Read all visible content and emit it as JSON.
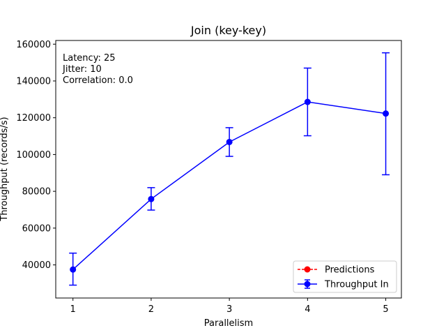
{
  "chart_data": {
    "type": "line",
    "title": "Join (key-key)",
    "xlabel": "Parallelism",
    "ylabel": "Throughput (records/s)",
    "xlim": [
      0.78,
      5.2
    ],
    "ylim": [
      22000,
      162000
    ],
    "x_ticks": [
      1,
      2,
      3,
      4,
      5
    ],
    "x_tick_labels": [
      "1",
      "2",
      "3",
      "4",
      "5"
    ],
    "y_ticks": [
      40000,
      60000,
      80000,
      100000,
      120000,
      140000,
      160000
    ],
    "y_tick_labels": [
      "40000",
      "60000",
      "80000",
      "100000",
      "120000",
      "140000",
      "160000"
    ],
    "annotations": [
      "Latency: 25",
      "Jitter: 10",
      "Correlation: 0.0"
    ],
    "legend_position": "lower-right",
    "grid": false,
    "series": [
      {
        "name": "Predictions",
        "color": "#ff0000",
        "style": "dashed",
        "marker": "circle",
        "x": [],
        "y": []
      },
      {
        "name": "Throughput In",
        "color": "#0000ff",
        "style": "solid",
        "marker": "circle",
        "x": [
          1,
          2,
          3,
          4,
          5
        ],
        "y": [
          37500,
          75800,
          106800,
          128600,
          122300
        ],
        "err_low": [
          29000,
          69800,
          99000,
          110200,
          89000
        ],
        "err_high": [
          46400,
          82000,
          114600,
          147000,
          155300
        ]
      }
    ]
  }
}
